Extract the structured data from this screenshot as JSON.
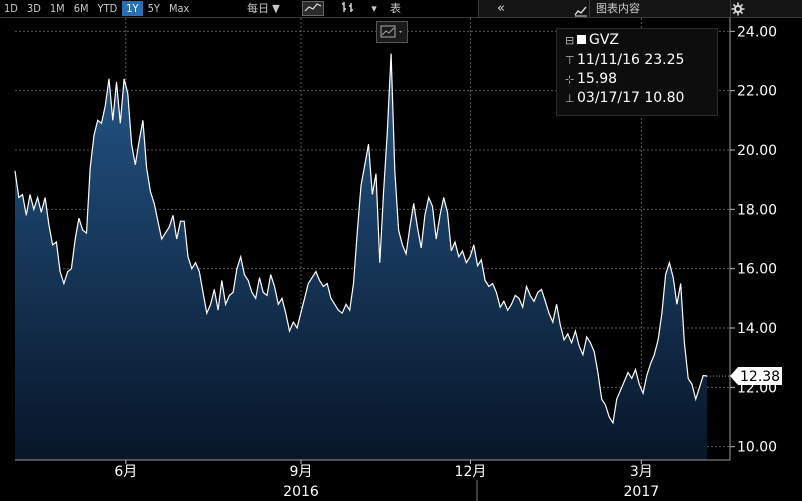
{
  "toolbar": {
    "periods": [
      "1D",
      "3D",
      "1M",
      "6M",
      "YTD",
      "1Y",
      "5Y",
      "Max"
    ],
    "active_period": "1Y",
    "frequency": "每日 ▼",
    "table_label": "表",
    "collapse_symbol": "«",
    "chart_content_label": "图表内容"
  },
  "legend": {
    "ticker": "GVZ",
    "high_line": "11/11/16 23.25",
    "avg_line": "15.98",
    "low_line": "03/17/17 10.80"
  },
  "last_value_label": "12.38",
  "chart_data": {
    "type": "area",
    "title": "",
    "series": [
      {
        "name": "GVZ",
        "values": [
          19.3,
          18.4,
          18.5,
          17.8,
          18.5,
          18.0,
          18.4,
          17.9,
          18.4,
          17.5,
          16.8,
          16.9,
          15.9,
          15.5,
          15.9,
          16.0,
          17.0,
          17.7,
          17.3,
          17.2,
          19.4,
          20.5,
          21.0,
          20.9,
          21.5,
          22.4,
          21.0,
          22.3,
          20.9,
          22.4,
          21.9,
          20.2,
          19.5,
          20.3,
          21.0,
          19.4,
          18.6,
          18.2,
          17.6,
          17.0,
          17.2,
          17.4,
          17.8,
          17.0,
          17.6,
          17.6,
          16.4,
          16.0,
          16.2,
          15.9,
          15.2,
          14.5,
          14.8,
          15.3,
          14.6,
          15.6,
          14.8,
          15.1,
          15.2,
          16.0,
          16.4,
          15.8,
          15.6,
          15.2,
          15.0,
          15.7,
          15.2,
          15.1,
          15.8,
          15.4,
          14.8,
          15.0,
          14.5,
          13.9,
          14.2,
          14.0,
          14.5,
          15.0,
          15.5,
          15.7,
          15.9,
          15.6,
          15.4,
          15.5,
          15.0,
          14.8,
          14.6,
          14.5,
          14.8,
          14.6,
          15.5,
          17.2,
          18.8,
          19.5,
          20.2,
          18.5,
          19.2,
          16.2,
          18.6,
          20.6,
          23.25,
          19.3,
          17.3,
          16.8,
          16.5,
          17.4,
          18.2,
          17.4,
          16.7,
          17.8,
          18.4,
          18.1,
          17.0,
          17.8,
          18.4,
          17.9,
          16.6,
          16.9,
          16.4,
          16.6,
          16.2,
          16.4,
          16.8,
          16.1,
          16.3,
          15.6,
          15.4,
          15.5,
          15.2,
          14.7,
          14.9,
          14.6,
          14.8,
          15.1,
          15.0,
          14.7,
          15.4,
          15.1,
          14.9,
          15.2,
          15.3,
          14.9,
          14.5,
          14.2,
          14.8,
          14.1,
          13.6,
          13.8,
          13.5,
          13.9,
          13.4,
          13.1,
          13.7,
          13.5,
          13.2,
          12.5,
          11.6,
          11.4,
          11.0,
          10.8,
          11.6,
          11.9,
          12.2,
          12.5,
          12.3,
          12.6,
          12.1,
          11.8,
          12.4,
          12.8,
          13.1,
          13.6,
          14.5,
          15.8,
          16.2,
          15.7,
          14.8,
          15.5,
          13.5,
          12.3,
          12.1,
          11.6,
          12.0,
          12.4,
          12.38
        ]
      }
    ],
    "x_ticks": [
      {
        "label": "6月",
        "at": 0.155
      },
      {
        "label": "9月",
        "at": 0.4
      },
      {
        "label": "12月",
        "at": 0.637
      },
      {
        "label": "3月",
        "at": 0.876
      }
    ],
    "years": [
      {
        "label": "2016",
        "at": 0.4
      },
      {
        "label": "2017",
        "at": 0.876
      }
    ],
    "y_ticks": [
      "24.00",
      "22.00",
      "20.00",
      "18.00",
      "16.00",
      "14.00",
      "12.00",
      "10.00"
    ],
    "ylim": [
      9.55,
      24.45
    ],
    "grid": true,
    "legend_position": "top-right",
    "colors": {
      "line": "#ffffff",
      "fill_top": "#1e4a78",
      "fill_bottom": "#0a1a30",
      "grid": "#5a5a5a"
    }
  }
}
